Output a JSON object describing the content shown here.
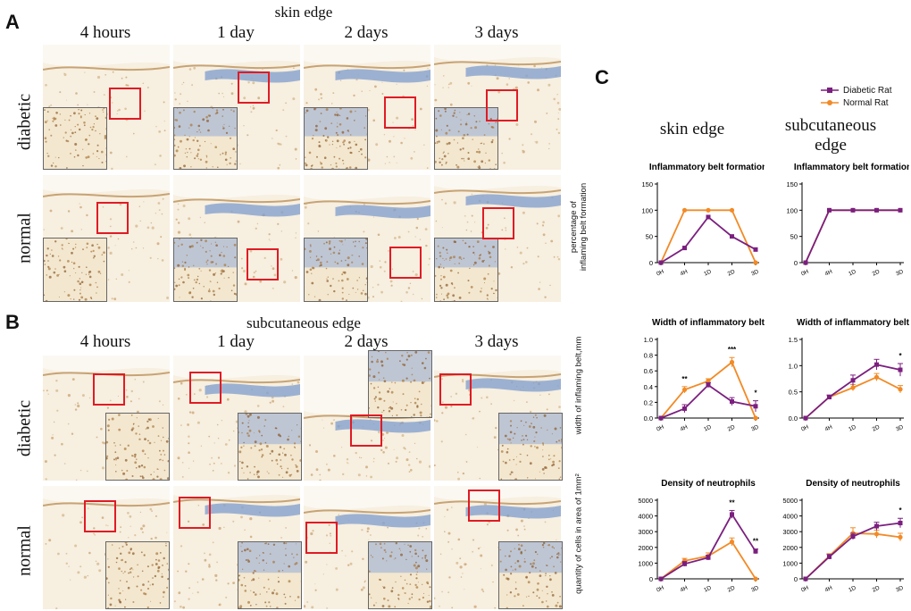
{
  "panels": {
    "A": "A",
    "B": "B",
    "C": "C"
  },
  "section_a": {
    "title": "skin edge",
    "columns": [
      "4 hours",
      "1 day",
      "2 days",
      "3 days"
    ],
    "rows": [
      "diabetic",
      "normal"
    ]
  },
  "section_b": {
    "title": "subcutaneous edge",
    "columns": [
      "4 hours",
      "1 day",
      "2 days",
      "3 days"
    ],
    "rows": [
      "diabetic",
      "normal"
    ]
  },
  "colors": {
    "diabetic": "#7b1f7f",
    "normal": "#f28a26",
    "box": "#e01b24",
    "tissue": "#ecdcc0",
    "stain_blue": "#6f93c7"
  },
  "panel_c": {
    "legend": [
      "Diabetic Rat",
      "Normal Rat"
    ],
    "col_heads": [
      "skin edge",
      "subcutaneous\nedge"
    ],
    "ylabels": [
      "percentage of\ninflaming belt formation",
      "width of inflaming belt,mm",
      "quantity of cells in area of 1mm²"
    ]
  },
  "chart_data": [
    {
      "type": "line",
      "title": "Inflammatory belt formation",
      "x": [
        "0H",
        "4H",
        "1D",
        "2D",
        "3D"
      ],
      "ylim": [
        0,
        150
      ],
      "yticks": [
        0,
        50,
        100,
        150
      ],
      "series": [
        {
          "name": "Diabetic Rat",
          "values": [
            0,
            28,
            87,
            50,
            25
          ]
        },
        {
          "name": "Normal Rat",
          "values": [
            0,
            100,
            100,
            100,
            0
          ]
        }
      ]
    },
    {
      "type": "line",
      "title": "Inflammatory belt formation",
      "x": [
        "0H",
        "4H",
        "1D",
        "2D",
        "3D"
      ],
      "ylim": [
        0,
        150
      ],
      "yticks": [
        0,
        50,
        100,
        150
      ],
      "series": [
        {
          "name": "Diabetic Rat",
          "values": [
            0,
            100,
            100,
            100,
            100
          ]
        },
        {
          "name": "Normal Rat",
          "values": [
            0,
            100,
            100,
            100,
            100
          ]
        }
      ]
    },
    {
      "type": "line",
      "title": "Width of inflammatory belt",
      "x": [
        "0H",
        "4H",
        "1D",
        "2D",
        "3D"
      ],
      "ylim": [
        0,
        1.0
      ],
      "yticks": [
        0.0,
        0.2,
        0.4,
        0.6,
        0.8,
        1.0
      ],
      "series": [
        {
          "name": "Diabetic Rat",
          "values": [
            0,
            0.12,
            0.42,
            0.21,
            0.15
          ],
          "errors": [
            0,
            0.05,
            0.03,
            0.05,
            0.07
          ]
        },
        {
          "name": "Normal Rat",
          "values": [
            0,
            0.36,
            0.47,
            0.71,
            0.0
          ],
          "errors": [
            0,
            0.04,
            0.03,
            0.06,
            0
          ]
        }
      ],
      "annotations": [
        {
          "x": "4H",
          "text": "**"
        },
        {
          "x": "2D",
          "text": "***"
        },
        {
          "x": "3D",
          "text": "*"
        }
      ]
    },
    {
      "type": "line",
      "title": "Width of inflammatory belt",
      "x": [
        "0H",
        "4H",
        "1D",
        "2D",
        "3D"
      ],
      "ylim": [
        0,
        1.5
      ],
      "yticks": [
        0.0,
        0.5,
        1.0,
        1.5
      ],
      "series": [
        {
          "name": "Diabetic Rat",
          "values": [
            0,
            0.4,
            0.72,
            1.02,
            0.92
          ],
          "errors": [
            0,
            0.04,
            0.1,
            0.1,
            0.12
          ]
        },
        {
          "name": "Normal Rat",
          "values": [
            0,
            0.4,
            0.58,
            0.78,
            0.55
          ],
          "errors": [
            0,
            0.03,
            0.06,
            0.07,
            0.07
          ]
        }
      ],
      "annotations": [
        {
          "x": "3D",
          "text": "*"
        }
      ]
    },
    {
      "type": "line",
      "title": "Density of neutrophils",
      "x": [
        "0H",
        "4H",
        "1D",
        "2D",
        "3D"
      ],
      "ylim": [
        0,
        5000
      ],
      "yticks": [
        0,
        1000,
        2000,
        3000,
        4000,
        5000
      ],
      "series": [
        {
          "name": "Diabetic Rat",
          "values": [
            0,
            950,
            1350,
            4100,
            1750
          ],
          "errors": [
            0,
            150,
            150,
            250,
            150
          ]
        },
        {
          "name": "Normal Rat",
          "values": [
            0,
            1150,
            1450,
            2350,
            0
          ],
          "errors": [
            0,
            150,
            200,
            250,
            0
          ]
        }
      ],
      "annotations": [
        {
          "x": "2D",
          "text": "**"
        },
        {
          "x": "3D",
          "text": "**"
        }
      ]
    },
    {
      "type": "line",
      "title": "Density of neutrophils",
      "x": [
        "0H",
        "4H",
        "1D",
        "2D",
        "3D"
      ],
      "ylim": [
        0,
        5000
      ],
      "yticks": [
        0,
        1000,
        2000,
        3000,
        4000,
        5000
      ],
      "series": [
        {
          "name": "Diabetic Rat",
          "values": [
            0,
            1400,
            2700,
            3350,
            3550
          ],
          "errors": [
            0,
            150,
            200,
            250,
            300
          ]
        },
        {
          "name": "Normal Rat",
          "values": [
            0,
            1450,
            2900,
            2850,
            2650
          ],
          "errors": [
            0,
            150,
            350,
            250,
            250
          ]
        }
      ],
      "annotations": [
        {
          "x": "3D",
          "text": "*"
        }
      ]
    }
  ]
}
